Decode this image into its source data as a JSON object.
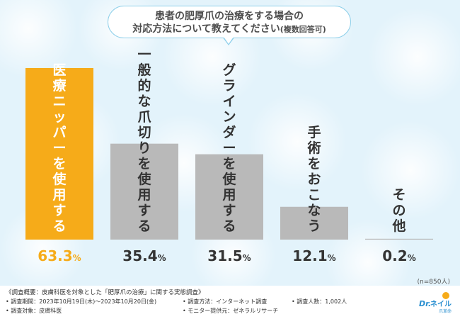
{
  "question": {
    "line1": "患者の肥厚爪の治療をする場合の",
    "line2_main": "対応方法について教えてください",
    "line2_note": "(複数回答可)"
  },
  "chart_data": {
    "type": "bar",
    "categories": [
      "医療ニッパーを使用する",
      "一般的な爪切りを使用する",
      "グラインダーを使用する",
      "手術をおこなう",
      "その他"
    ],
    "values": [
      63.3,
      35.4,
      31.5,
      12.1,
      0.2
    ],
    "value_labels": [
      {
        "num": "63.3",
        "unit": "%"
      },
      {
        "num": "35.4",
        "unit": "%"
      },
      {
        "num": "31.5",
        "unit": "%"
      },
      {
        "num": "12.1",
        "unit": "%"
      },
      {
        "num": "0.2",
        "unit": "%"
      }
    ],
    "ylim": [
      0,
      63.3
    ],
    "colors": {
      "highlight": "#f6ab19",
      "default": "#b9b9b9",
      "highlight_label": "#ffffff",
      "default_label": "#333333"
    },
    "title": "",
    "xlabel": "",
    "ylabel": ""
  },
  "sample_size": "(n=850人)",
  "footer": {
    "title": "《調査概要：皮膚科医を対象とした「肥厚爪の治療」に関する実態調査》",
    "period": "• 調査期間：2023年10月19日(木)～2023年10月20日(金)",
    "method": "• 調査方法：インターネット調査",
    "count": "• 調査人数：1,002人",
    "target": "• 調査対象：皮膚科医",
    "provider": "• モニター提供元：ゼネラルリサーチ"
  },
  "logo": {
    "text_dr": "Dr.",
    "text_name": "ネイル",
    "text_sub": "爪革命"
  }
}
